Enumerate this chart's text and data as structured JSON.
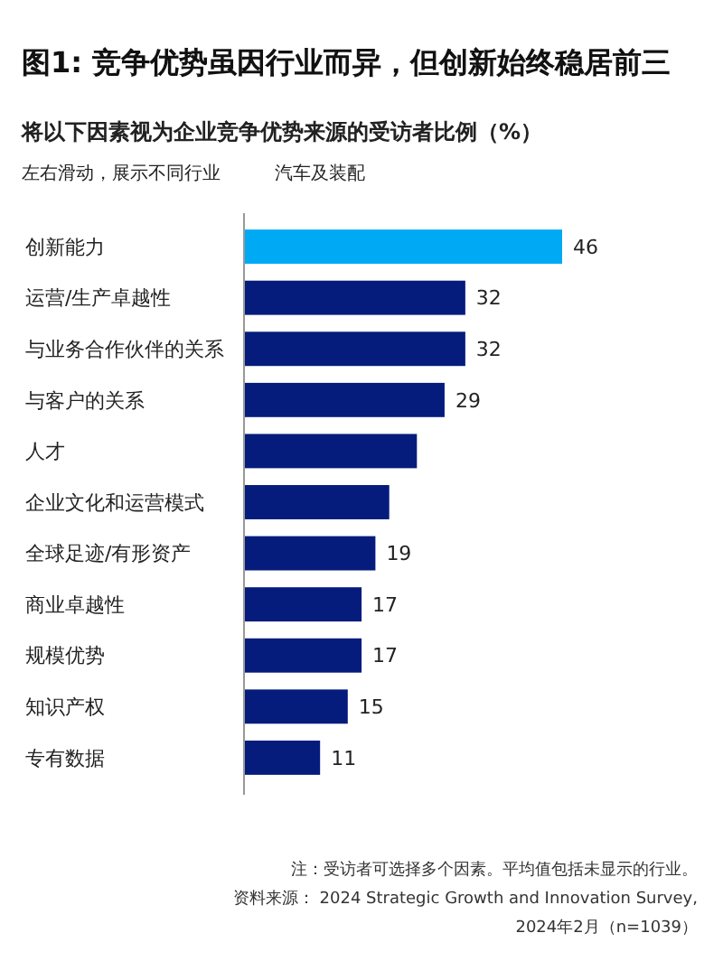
{
  "chart_data": {
    "type": "bar",
    "orientation": "horizontal",
    "title": "图1: 竞争优势虽因行业而异，但创新始终稳居前三",
    "subtitle": "将以下因素视为企业竞争优势来源的受访者比例（%）",
    "annotations": [
      "左右滑动，展示不同行业",
      "汽车及装配",
      "注：受访者可选择多个因素。平均值包括未显示的行业。",
      "资料来源： 2024 Strategic Growth and Innovation Survey,",
      "2024年2月（n=1039）"
    ],
    "categories": [
      "创新能力",
      "运营/生产卓越性",
      "与业务合作伙伴的关系",
      "与客户的关系",
      "人才",
      "企业文化和运营模式",
      "全球足迹/有形资产",
      "商业卓越性",
      "规模优势",
      "知识产权",
      "专有数据"
    ],
    "values": [
      46,
      32,
      32,
      29,
      25,
      21,
      19,
      17,
      17,
      15,
      11
    ],
    "value_labels": [
      "46",
      "32",
      "32",
      "29",
      null,
      null,
      "19",
      "17",
      "17",
      "15",
      "11"
    ],
    "colors": [
      "#00a9f4",
      "#051c7c",
      "#051c7c",
      "#051c7c",
      "#051c7c",
      "#051c7c",
      "#051c7c",
      "#051c7c",
      "#051c7c",
      "#051c7c",
      "#051c7c"
    ]
  }
}
